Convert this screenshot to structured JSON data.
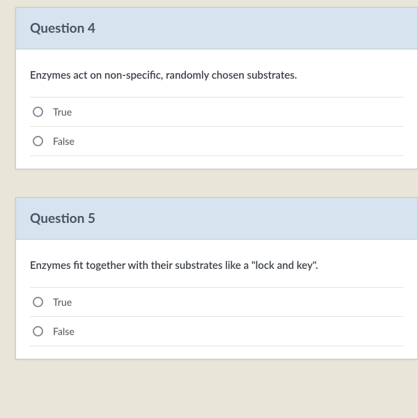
{
  "questions": [
    {
      "title": "Question 4",
      "prompt": "Enzymes act on non-specific, randomly chosen substrates.",
      "options": [
        "True",
        "False"
      ]
    },
    {
      "title": "Question 5",
      "prompt": "Enzymes fit together with their substrates like a \"lock and key\".",
      "options": [
        "True",
        "False"
      ]
    }
  ],
  "colors": {
    "page_bg": "#e8e6d8",
    "card_bg": "#ffffff",
    "header_bg": "#d6e4f0",
    "border": "#c8c8c2",
    "divider": "#e2e2dc",
    "title_text": "#4a5360",
    "prompt_text": "#3a3f47",
    "option_text": "#5a5f65",
    "radio_border": "#8a8f95"
  },
  "typography": {
    "title_fontsize": 19,
    "title_weight": 700,
    "prompt_fontsize": 15,
    "prompt_weight": 600,
    "option_fontsize": 14,
    "option_weight": 500
  }
}
